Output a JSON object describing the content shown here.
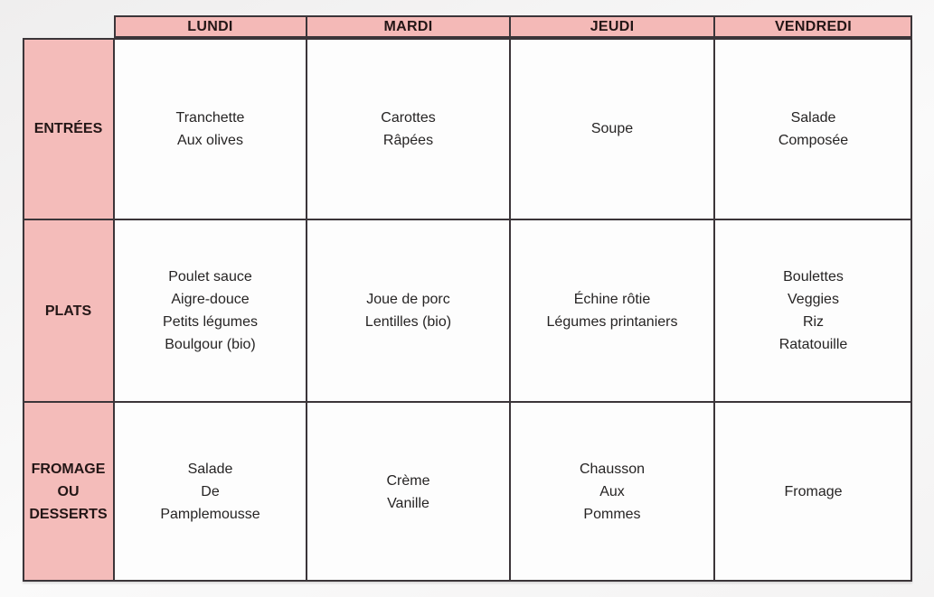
{
  "colors": {
    "header_bg": "#f4b9b7",
    "label_bg": "#f4bcba",
    "cell_bg": "#fdfdfd",
    "grid_line": "#3b3539",
    "text": "#262424",
    "heading_text": "#231616",
    "page_bg_top": "#efeeee",
    "page_bg_bottom": "#f4f3f3"
  },
  "menu": {
    "days": [
      "LUNDI",
      "MARDI",
      "JEUDI",
      "VENDREDI"
    ],
    "rows": [
      {
        "label": "ENTRÉES",
        "cells": [
          "Tranchette\nAux olives",
          "Carottes\nRâpées",
          "Soupe",
          "Salade\nComposée"
        ]
      },
      {
        "label": "PLATS",
        "cells": [
          "Poulet sauce\nAigre-douce\nPetits légumes\nBoulgour (bio)",
          "Joue de porc\nLentilles (bio)",
          "Échine rôtie\nLégumes printaniers",
          "Boulettes\nVeggies\nRiz\nRatatouille"
        ]
      },
      {
        "label": "FROMAGE\nOU\nDESSERTS",
        "cells": [
          "Salade\nDe\nPamplemousse",
          "Crème\nVanille",
          "Chausson\nAux\nPommes",
          "Fromage"
        ]
      }
    ]
  }
}
